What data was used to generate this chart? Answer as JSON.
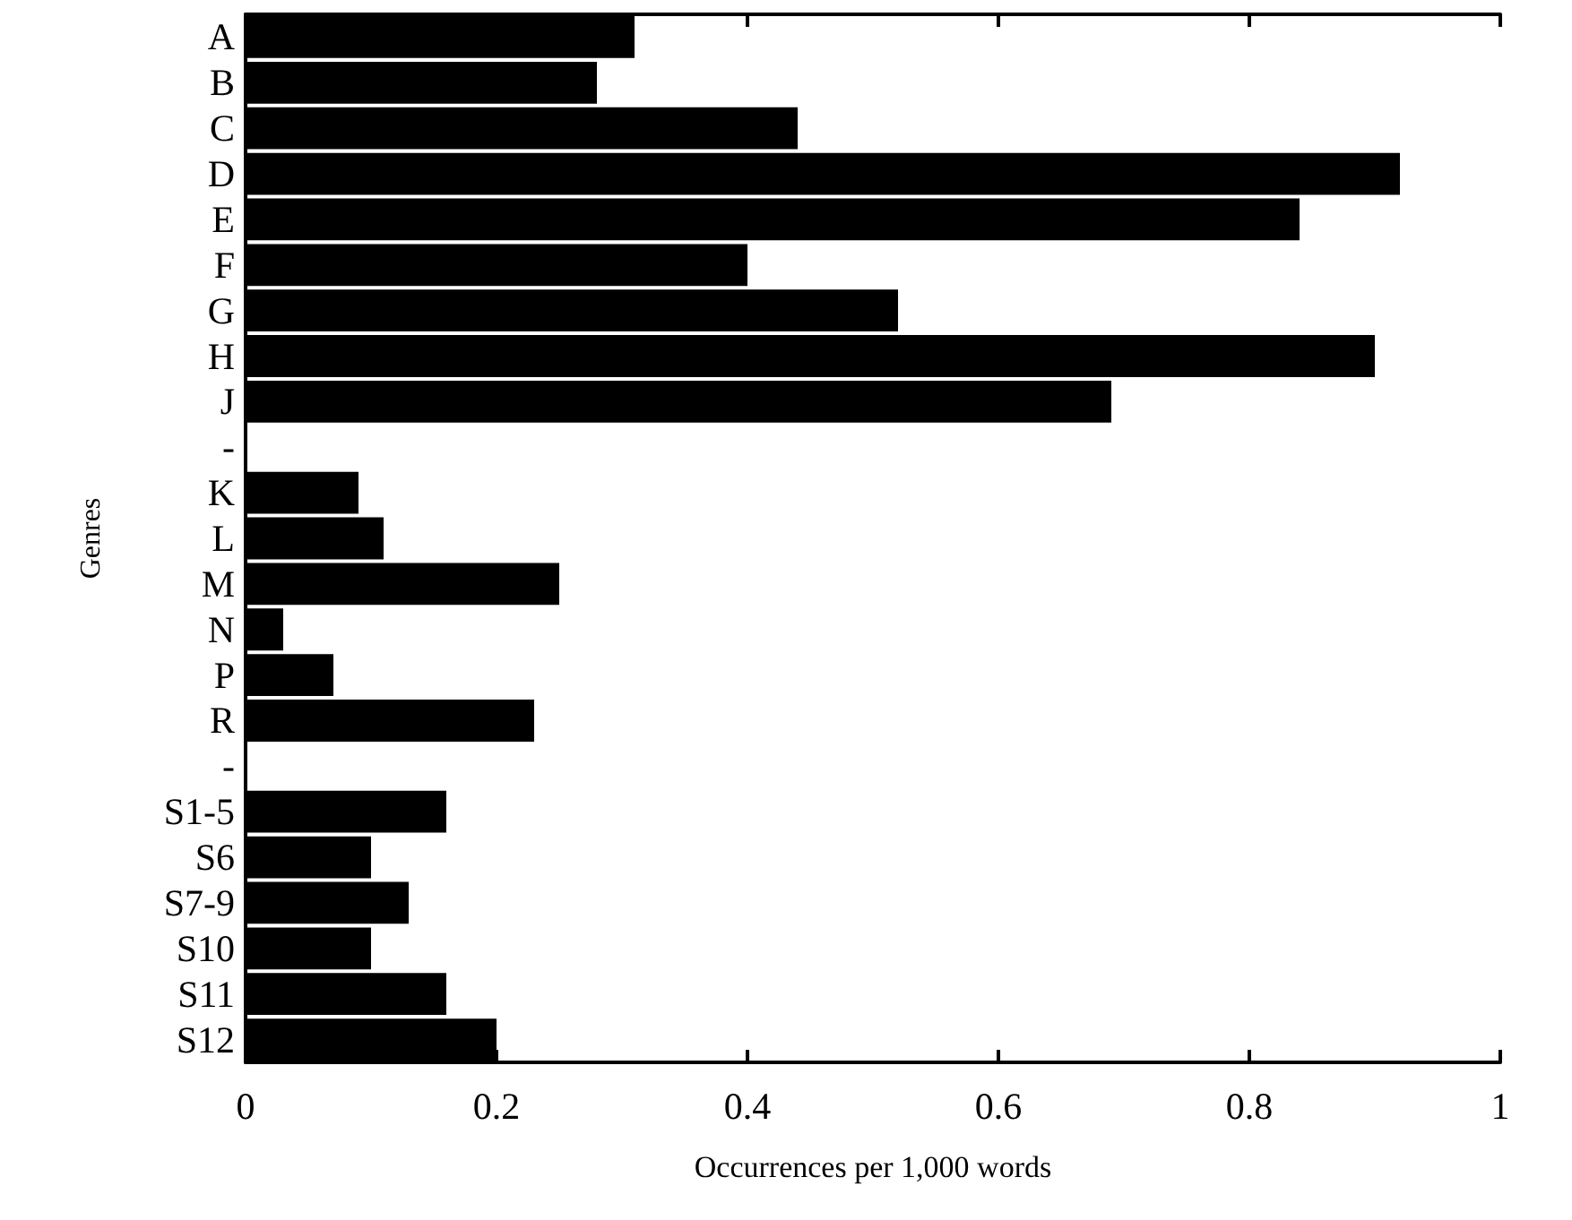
{
  "chart_data": {
    "type": "bar",
    "orientation": "horizontal",
    "xlabel": "Occurrences per 1,000 words",
    "ylabel": "Genres",
    "categories": [
      "A",
      "B",
      "C",
      "D",
      "E",
      "F",
      "G",
      "H",
      "J",
      "-",
      "K",
      "L",
      "M",
      "N",
      "P",
      "R",
      "-",
      "S1-5",
      "S6",
      "S7-9",
      "S10",
      "S11",
      "S12"
    ],
    "values": [
      0.31,
      0.28,
      0.44,
      0.92,
      0.84,
      0.4,
      0.52,
      0.9,
      0.69,
      null,
      0.09,
      0.11,
      0.25,
      0.03,
      0.07,
      0.23,
      null,
      0.16,
      0.1,
      0.13,
      0.1,
      0.16,
      0.2
    ],
    "color": "#000000",
    "xlim": [
      0,
      1
    ],
    "xticks": [
      0,
      0.2,
      0.4,
      0.6,
      0.8,
      1
    ],
    "grid": false
  }
}
